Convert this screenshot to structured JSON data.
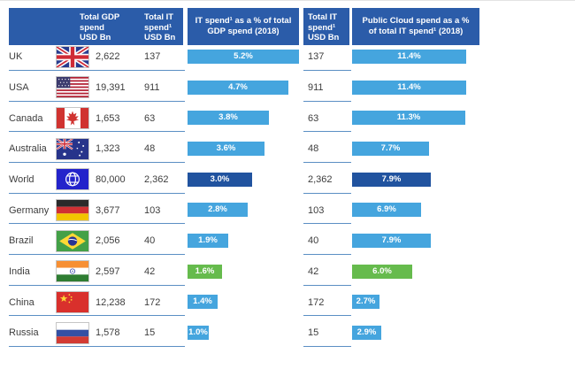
{
  "table": {
    "headers": {
      "gdp_label": "Total GDP\nspend\nUSD Bn",
      "it_label": "Total IT\nspend¹\nUSD Bn",
      "it_pct_gdp_label": "IT spend¹ as a % of total GDP spend (2018)",
      "it2_label": "Total IT\nspend¹\nUSD Bn",
      "cloud_pct_label": "Public Cloud spend as a % of total IT spend¹ (2018)"
    },
    "rows": [
      {
        "country": "UK",
        "flag_icon": "uk-flag-icon",
        "gdp": "2,622",
        "it": "137",
        "it_pct_gdp": "5.2%",
        "it2": "137",
        "cloud_pct": "11.4%",
        "bar_color": "light_blue"
      },
      {
        "country": "USA",
        "flag_icon": "usa-flag-icon",
        "gdp": "19,391",
        "it": "911",
        "it_pct_gdp": "4.7%",
        "it2": "911",
        "cloud_pct": "11.4%",
        "bar_color": "light_blue"
      },
      {
        "country": "Canada",
        "flag_icon": "canada-flag-icon",
        "gdp": "1,653",
        "it": "63",
        "it_pct_gdp": "3.8%",
        "it2": "63",
        "cloud_pct": "11.3%",
        "bar_color": "light_blue"
      },
      {
        "country": "Australia",
        "flag_icon": "australia-flag-icon",
        "gdp": "1,323",
        "it": "48",
        "it_pct_gdp": "3.6%",
        "it2": "48",
        "cloud_pct": "7.7%",
        "bar_color": "light_blue"
      },
      {
        "country": "World",
        "flag_icon": "world-globe-flag-icon",
        "gdp": "80,000",
        "it": "2,362",
        "it_pct_gdp": "3.0%",
        "it2": "2,362",
        "cloud_pct": "7.9%",
        "bar_color": "dark_blue"
      },
      {
        "country": "Germany",
        "flag_icon": "germany-flag-icon",
        "gdp": "3,677",
        "it": "103",
        "it_pct_gdp": "2.8%",
        "it2": "103",
        "cloud_pct": "6.9%",
        "bar_color": "light_blue"
      },
      {
        "country": "Brazil",
        "flag_icon": "brazil-flag-icon",
        "gdp": "2,056",
        "it": "40",
        "it_pct_gdp": "1.9%",
        "it2": "40",
        "cloud_pct": "7.9%",
        "bar_color": "light_blue"
      },
      {
        "country": "India",
        "flag_icon": "india-flag-icon",
        "gdp": "2,597",
        "it": "42",
        "it_pct_gdp": "1.6%",
        "it2": "42",
        "cloud_pct": "6.0%",
        "bar_color": "green"
      },
      {
        "country": "China",
        "flag_icon": "china-flag-icon",
        "gdp": "12,238",
        "it": "172",
        "it_pct_gdp": "1.4%",
        "it2": "172",
        "cloud_pct": "2.7%",
        "bar_color": "light_blue"
      },
      {
        "country": "Russia",
        "flag_icon": "russia-flag-icon",
        "gdp": "1,578",
        "it": "15",
        "it_pct_gdp": "1.0%",
        "it2": "15",
        "cloud_pct": "2.9%",
        "bar_color": "light_blue"
      }
    ]
  },
  "colors": {
    "header_bg": "#2b5ca9",
    "bar_light_blue": "#45a5de",
    "bar_dark_blue": "#21539f",
    "bar_green": "#66bb4d",
    "separator": "#5b8fc4",
    "text": "#3d3d3d"
  },
  "chart_data": {
    "type": "bar",
    "title": "",
    "categories": [
      "UK",
      "USA",
      "Canada",
      "Australia",
      "World",
      "Germany",
      "Brazil",
      "India",
      "China",
      "Russia"
    ],
    "series": [
      {
        "name": "Total GDP spend USD Bn",
        "values": [
          2622,
          19391,
          1653,
          1323,
          80000,
          3677,
          2056,
          2597,
          12238,
          1578
        ]
      },
      {
        "name": "Total IT spend¹ USD Bn",
        "values": [
          137,
          911,
          63,
          48,
          2362,
          103,
          40,
          42,
          172,
          15
        ]
      },
      {
        "name": "IT spend¹ as a % of total GDP spend (2018)",
        "values": [
          5.2,
          4.7,
          3.8,
          3.6,
          3.0,
          2.8,
          1.9,
          1.6,
          1.4,
          1.0
        ]
      },
      {
        "name": "Public Cloud spend as a % of total IT spend¹ (2018)",
        "values": [
          11.4,
          11.4,
          11.3,
          7.7,
          7.9,
          6.9,
          7.9,
          6.0,
          2.7,
          2.9
        ]
      }
    ],
    "data_labels_shown": [
      "IT spend¹ as a % of total GDP spend (2018)",
      "Public Cloud spend as a % of total IT spend¹ (2018)"
    ],
    "xlim_pct_gdp": [
      0,
      5.2
    ],
    "xlim_pct_cloud": [
      0,
      11.4
    ],
    "orientation": "horizontal",
    "grid": false,
    "legend": false,
    "highlight_rows": {
      "World": "dark-blue bars",
      "India": "green bars"
    }
  }
}
